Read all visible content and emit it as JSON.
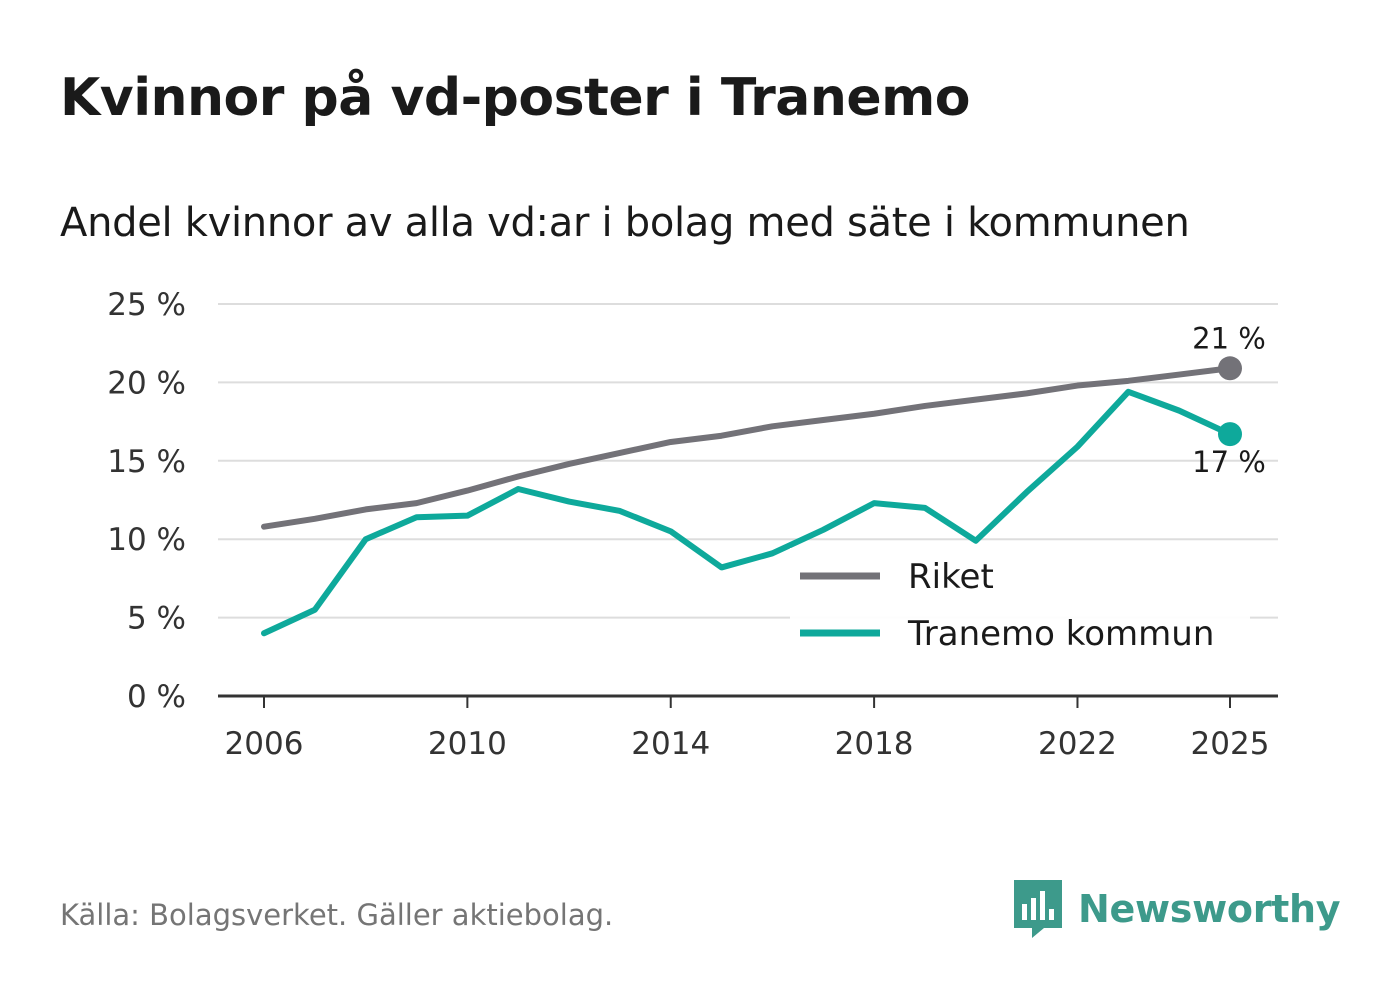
{
  "header": {
    "title": "Kvinnor på vd-poster i Tranemo",
    "subtitle": "Andel kvinnor av alla vd:ar i bolag med säte i kommunen"
  },
  "footer": {
    "source": "Källa: Bolagsverket. Gäller aktiebolag.",
    "brand": "Newsworthy"
  },
  "colors": {
    "riket": "#737278",
    "tranemo": "#0ea99b",
    "grid": "#dddddd",
    "axis": "#333333",
    "brand": "#3d9a8b"
  },
  "chart_data": {
    "type": "line",
    "title": "Kvinnor på vd-poster i Tranemo",
    "subtitle": "Andel kvinnor av alla vd:ar i bolag med säte i kommunen",
    "xlabel": "",
    "ylabel": "",
    "ylim": [
      0,
      25
    ],
    "xlim": [
      2006,
      2025
    ],
    "x_ticks": [
      2006,
      2010,
      2014,
      2018,
      2022,
      2025
    ],
    "x_tick_labels": [
      "2006",
      "2010",
      "2014",
      "2018",
      "2022",
      "2025"
    ],
    "y_ticks": [
      0,
      5,
      10,
      15,
      20,
      25
    ],
    "y_tick_labels": [
      "0 %",
      "5 %",
      "10 %",
      "15 %",
      "20 %",
      "25 %"
    ],
    "grid": true,
    "legend_position": "bottom-right",
    "x": [
      2006,
      2007,
      2008,
      2009,
      2010,
      2011,
      2012,
      2013,
      2014,
      2015,
      2016,
      2017,
      2018,
      2019,
      2020,
      2021,
      2022,
      2023,
      2024,
      2025
    ],
    "series": [
      {
        "name": "Riket",
        "color": "#737278",
        "values": [
          10.8,
          11.3,
          11.9,
          12.3,
          13.1,
          14.0,
          14.8,
          15.5,
          16.2,
          16.6,
          17.2,
          17.6,
          18.0,
          18.5,
          18.9,
          19.3,
          19.8,
          20.1,
          20.5,
          20.9
        ],
        "end_label": "21 %",
        "end_label_position": "above"
      },
      {
        "name": "Tranemo kommun",
        "color": "#0ea99b",
        "values": [
          4.0,
          5.5,
          10.0,
          11.4,
          11.5,
          13.2,
          12.4,
          11.8,
          10.5,
          8.2,
          9.1,
          10.6,
          12.3,
          12.0,
          9.9,
          13.0,
          15.9,
          19.4,
          18.2,
          16.7
        ],
        "end_label": "17 %",
        "end_label_position": "below"
      }
    ]
  }
}
